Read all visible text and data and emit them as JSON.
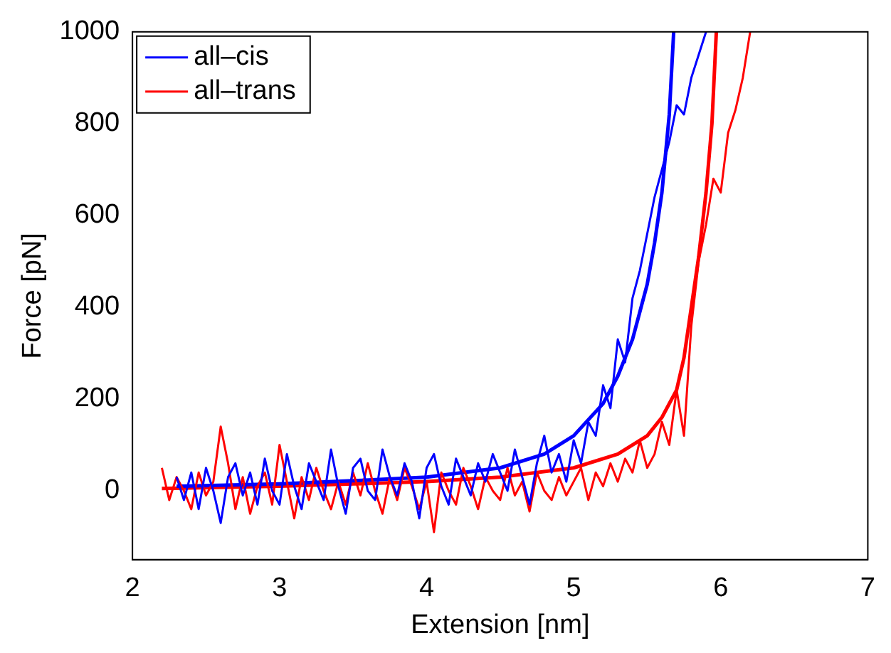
{
  "chart_data": {
    "type": "line",
    "xlabel": "Extension [nm]",
    "ylabel": "Force [pN]",
    "xlim": [
      2,
      7
    ],
    "xticks": [
      2,
      3,
      4,
      5,
      6,
      7
    ],
    "ylim": [
      -150,
      1000
    ],
    "yticks": [
      0,
      200,
      400,
      600,
      800,
      1000
    ],
    "grid": false,
    "legend": "top left",
    "marker": "none",
    "line_style": "solid",
    "series": [
      {
        "name": "all–cis",
        "color": "#0000ff",
        "x": [
          2.3,
          2.35,
          2.4,
          2.45,
          2.5,
          2.55,
          2.6,
          2.65,
          2.7,
          2.75,
          2.8,
          2.85,
          2.9,
          2.95,
          3.0,
          3.05,
          3.1,
          3.15,
          3.2,
          3.25,
          3.3,
          3.35,
          3.4,
          3.45,
          3.5,
          3.55,
          3.6,
          3.65,
          3.7,
          3.75,
          3.8,
          3.85,
          3.9,
          3.95,
          4.0,
          4.05,
          4.1,
          4.15,
          4.2,
          4.25,
          4.3,
          4.35,
          4.4,
          4.45,
          4.5,
          4.55,
          4.6,
          4.65,
          4.7,
          4.75,
          4.8,
          4.85,
          4.9,
          4.95,
          5.0,
          5.05,
          5.1,
          5.15,
          5.2,
          5.25,
          5.3,
          5.35,
          5.4,
          5.45,
          5.5,
          5.55,
          5.6,
          5.65,
          5.7,
          5.75,
          5.8,
          5.85,
          5.9
        ],
        "values": [
          30,
          -20,
          40,
          -40,
          50,
          0,
          -70,
          30,
          60,
          -10,
          40,
          -30,
          70,
          0,
          -30,
          80,
          10,
          -40,
          60,
          20,
          -20,
          90,
          10,
          -50,
          50,
          70,
          0,
          -20,
          90,
          30,
          -10,
          60,
          20,
          -60,
          50,
          80,
          10,
          -30,
          70,
          30,
          -10,
          60,
          20,
          80,
          40,
          0,
          90,
          30,
          -30,
          60,
          120,
          40,
          80,
          20,
          110,
          60,
          150,
          120,
          230,
          180,
          330,
          280,
          420,
          480,
          560,
          640,
          700,
          760,
          840,
          820,
          900,
          950,
          1000
        ]
      },
      {
        "name": "all–trans",
        "color": "#ff0000",
        "x": [
          2.2,
          2.25,
          2.3,
          2.35,
          2.4,
          2.45,
          2.5,
          2.55,
          2.6,
          2.65,
          2.7,
          2.75,
          2.8,
          2.85,
          2.9,
          2.95,
          3.0,
          3.05,
          3.1,
          3.15,
          3.2,
          3.25,
          3.3,
          3.35,
          3.4,
          3.45,
          3.5,
          3.55,
          3.6,
          3.65,
          3.7,
          3.75,
          3.8,
          3.85,
          3.9,
          3.95,
          4.0,
          4.05,
          4.1,
          4.15,
          4.2,
          4.25,
          4.3,
          4.35,
          4.4,
          4.45,
          4.5,
          4.55,
          4.6,
          4.65,
          4.7,
          4.75,
          4.8,
          4.85,
          4.9,
          4.95,
          5.0,
          5.05,
          5.1,
          5.15,
          5.2,
          5.25,
          5.3,
          5.35,
          5.4,
          5.45,
          5.5,
          5.55,
          5.6,
          5.65,
          5.7,
          5.75,
          5.8,
          5.85,
          5.9,
          5.95,
          6.0,
          6.05,
          6.1,
          6.15,
          6.2
        ],
        "values": [
          50,
          -20,
          30,
          0,
          -40,
          40,
          -10,
          20,
          140,
          60,
          -40,
          30,
          -50,
          10,
          40,
          -30,
          100,
          20,
          -60,
          30,
          -20,
          50,
          0,
          -40,
          20,
          -30,
          40,
          -10,
          60,
          0,
          -50,
          30,
          -20,
          50,
          10,
          -40,
          20,
          -90,
          40,
          0,
          -30,
          50,
          10,
          -40,
          30,
          0,
          -20,
          50,
          -10,
          20,
          -45,
          40,
          0,
          -20,
          30,
          -10,
          20,
          50,
          -20,
          40,
          10,
          60,
          20,
          70,
          40,
          110,
          50,
          80,
          150,
          100,
          220,
          120,
          360,
          500,
          580,
          680,
          650,
          780,
          830,
          900,
          1000
        ]
      },
      {
        "color": "#0000ff",
        "x": [
          2.3,
          3.0,
          3.5,
          4.0,
          4.5,
          4.8,
          5.0,
          5.2,
          5.3,
          5.4,
          5.5,
          5.55,
          5.6,
          5.65,
          5.68
        ],
        "values": [
          10,
          15,
          22,
          30,
          50,
          80,
          120,
          190,
          250,
          330,
          450,
          540,
          650,
          820,
          1000
        ]
      },
      {
        "color": "#ff0000",
        "x": [
          2.2,
          3.0,
          3.5,
          4.0,
          4.5,
          5.0,
          5.3,
          5.5,
          5.6,
          5.7,
          5.75,
          5.8,
          5.85,
          5.9,
          5.94,
          5.97
        ],
        "values": [
          5,
          10,
          15,
          20,
          30,
          50,
          80,
          120,
          160,
          220,
          290,
          400,
          510,
          650,
          800,
          1000
        ]
      }
    ]
  }
}
